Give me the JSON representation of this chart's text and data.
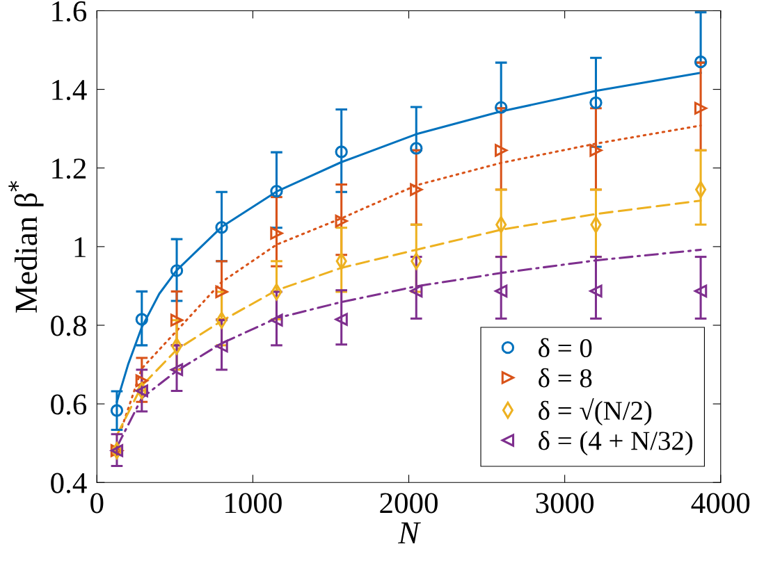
{
  "chart_data": {
    "type": "scatter",
    "xlabel": "N",
    "ylabel": "Median β$^{*}$",
    "x": [
      128,
      288,
      512,
      800,
      1152,
      1568,
      2048,
      2592,
      3200,
      3872
    ],
    "xlim": [
      0,
      4000
    ],
    "xticks": [
      0,
      1000,
      2000,
      3000,
      4000
    ],
    "ylim": [
      0.4,
      1.6
    ],
    "yticks": [
      0.4,
      0.6,
      0.8,
      {
        "value": 1,
        "label": "1"
      },
      1.2,
      1.4,
      1.6
    ],
    "grid": false,
    "legend": "bottom right",
    "series": [
      {
        "name": "δ = 0",
        "marker": "circle",
        "color": "#0072bd",
        "values": [
          0.583,
          0.815,
          0.939,
          1.049,
          1.141,
          1.241,
          1.25,
          1.354,
          1.366,
          1.47
        ],
        "errors": [
          [
            0.534,
            0.632
          ],
          [
            0.749,
            0.886
          ],
          [
            0.862,
            1.019
          ],
          [
            0.963,
            1.139
          ],
          [
            1.048,
            1.24
          ],
          [
            1.139,
            1.349
          ],
          [
            1.245,
            1.355
          ],
          [
            1.352,
            1.468
          ],
          [
            1.254,
            1.48
          ],
          [
            1.468,
            1.596
          ]
        ]
      },
      {
        "name": "δ = 8",
        "marker": "triangle-right",
        "color": "#d95319",
        "values": [
          0.481,
          0.659,
          0.813,
          0.885,
          1.034,
          1.065,
          1.145,
          1.245,
          1.245,
          1.352
        ],
        "errors": [
          null,
          [
            0.605,
            0.717
          ],
          [
            0.749,
            0.886
          ],
          [
            0.815,
            0.963
          ],
          [
            0.95,
            1.126
          ],
          [
            0.979,
            1.158
          ],
          [
            1.056,
            1.245
          ],
          [
            1.145,
            1.352
          ],
          [
            1.145,
            1.352
          ],
          [
            1.245,
            1.468
          ]
        ]
      },
      {
        "name": "δ = √(N/2)",
        "marker": "diamond",
        "color": "#edb120",
        "values": [
          0.481,
          0.634,
          0.747,
          0.813,
          0.885,
          0.963,
          0.963,
          1.056,
          1.056,
          1.145
        ],
        "errors": [
          null,
          null,
          [
            0.687,
            0.813
          ],
          [
            0.749,
            0.885
          ],
          [
            0.815,
            0.963
          ],
          [
            0.885,
            1.048
          ],
          [
            0.885,
            1.056
          ],
          [
            0.974,
            1.145
          ],
          [
            0.974,
            1.145
          ],
          [
            1.056,
            1.245
          ]
        ]
      },
      {
        "name": "δ = (4 + N/32)",
        "marker": "triangle-left",
        "color": "#7e2f8e",
        "values": [
          0.481,
          0.633,
          0.687,
          0.747,
          0.813,
          0.815,
          0.887,
          0.887,
          0.887,
          0.887
        ],
        "errors": [
          [
            0.442,
            0.523
          ],
          [
            0.581,
            0.687
          ],
          [
            0.633,
            0.749
          ],
          [
            0.687,
            0.813
          ],
          [
            0.749,
            0.885
          ],
          [
            0.751,
            0.889
          ],
          [
            0.817,
            0.974
          ],
          [
            0.817,
            0.974
          ],
          [
            0.817,
            0.974
          ],
          [
            0.817,
            0.974
          ]
        ]
      },
      {
        "type": "line",
        "line_style": "solid",
        "color": "#0072bd",
        "x": [
          128,
          200,
          288,
          400,
          512,
          800,
          1152,
          1568,
          2048,
          2592,
          3200,
          3872
        ],
        "values": [
          0.605,
          0.7,
          0.795,
          0.88,
          0.94,
          1.05,
          1.14,
          1.215,
          1.286,
          1.344,
          1.396,
          1.442
        ]
      },
      {
        "type": "line",
        "line_style": "dotted",
        "color": "#d95319",
        "x": [
          160,
          288,
          512,
          800,
          1152,
          1568,
          2048,
          2592,
          3200,
          3872
        ],
        "values": [
          0.54,
          0.69,
          0.786,
          0.91,
          1.005,
          1.072,
          1.156,
          1.213,
          1.262,
          1.308
        ]
      },
      {
        "type": "line",
        "line_style": "dashed",
        "color": "#edb120",
        "x": [
          128,
          288,
          512,
          800,
          1152,
          1568,
          2048,
          2592,
          3200,
          3872
        ],
        "values": [
          0.52,
          0.646,
          0.738,
          0.811,
          0.889,
          0.946,
          0.992,
          1.043,
          1.083,
          1.117
        ]
      },
      {
        "type": "line",
        "line_style": "dashdot",
        "color": "#7e2f8e",
        "x": [
          128,
          288,
          512,
          800,
          1152,
          1568,
          2048,
          2592,
          3200,
          3872
        ],
        "values": [
          0.49,
          0.615,
          0.684,
          0.754,
          0.818,
          0.859,
          0.899,
          0.933,
          0.965,
          0.992
        ]
      }
    ]
  }
}
